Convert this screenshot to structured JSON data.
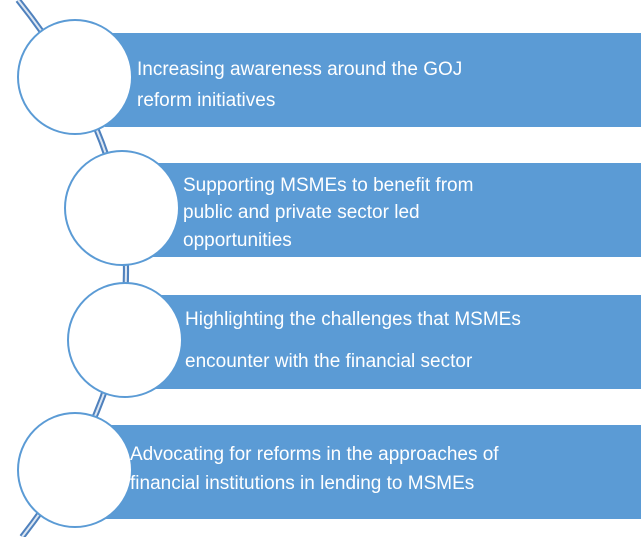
{
  "items": [
    {
      "lines": [
        "Increasing awareness around the GOJ",
        "reform initiatives"
      ]
    },
    {
      "lines": [
        "Supporting MSMEs to benefit from",
        "public and private sector led",
        "opportunities"
      ]
    },
    {
      "lines": [
        "Highlighting the challenges that MSMEs",
        "encounter with the financial sector"
      ]
    },
    {
      "lines": [
        "Advocating for reforms in the approaches of",
        "financial institutions in lending to MSMEs"
      ]
    }
  ]
}
